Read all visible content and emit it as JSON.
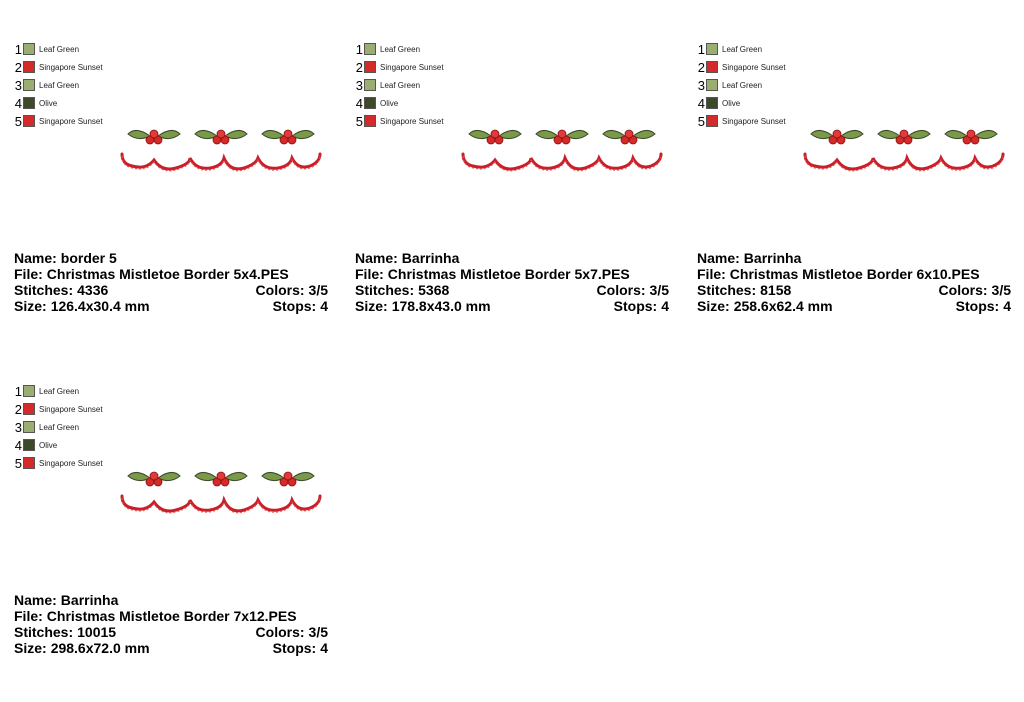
{
  "labels": {
    "name": "Name:",
    "file": "File:",
    "stitches": "Stitches:",
    "colors": "Colors:",
    "size": "Size:",
    "stops": "Stops:"
  },
  "palette": [
    {
      "num": "1",
      "name": "Leaf Green",
      "color": "#9aae72"
    },
    {
      "num": "2",
      "name": "Singapore Sunset",
      "color": "#d42a2a"
    },
    {
      "num": "3",
      "name": "Leaf Green",
      "color": "#9aae72"
    },
    {
      "num": "4",
      "name": "Olive",
      "color": "#3c4a2a"
    },
    {
      "num": "5",
      "name": "Singapore Sunset",
      "color": "#d42a2a"
    }
  ],
  "designs": [
    {
      "name": "border 5",
      "file": "Christmas Mistletoe Border 5x4.PES",
      "stitches": "4336",
      "colors": "3/5",
      "size": "126.4x30.4 mm",
      "stops": "4"
    },
    {
      "name": "Barrinha",
      "file": "Christmas Mistletoe Border 5x7.PES",
      "stitches": "5368",
      "colors": "3/5",
      "size": "178.8x43.0 mm",
      "stops": "4"
    },
    {
      "name": "Barrinha",
      "file": "Christmas Mistletoe Border 6x10.PES",
      "stitches": "8158",
      "colors": "3/5",
      "size": "258.6x62.4 mm",
      "stops": "4"
    },
    {
      "name": "Barrinha",
      "file": "Christmas Mistletoe Border 7x12.PES",
      "stitches": "10015",
      "colors": "3/5",
      "size": "298.6x72.0 mm",
      "stops": "4"
    }
  ]
}
